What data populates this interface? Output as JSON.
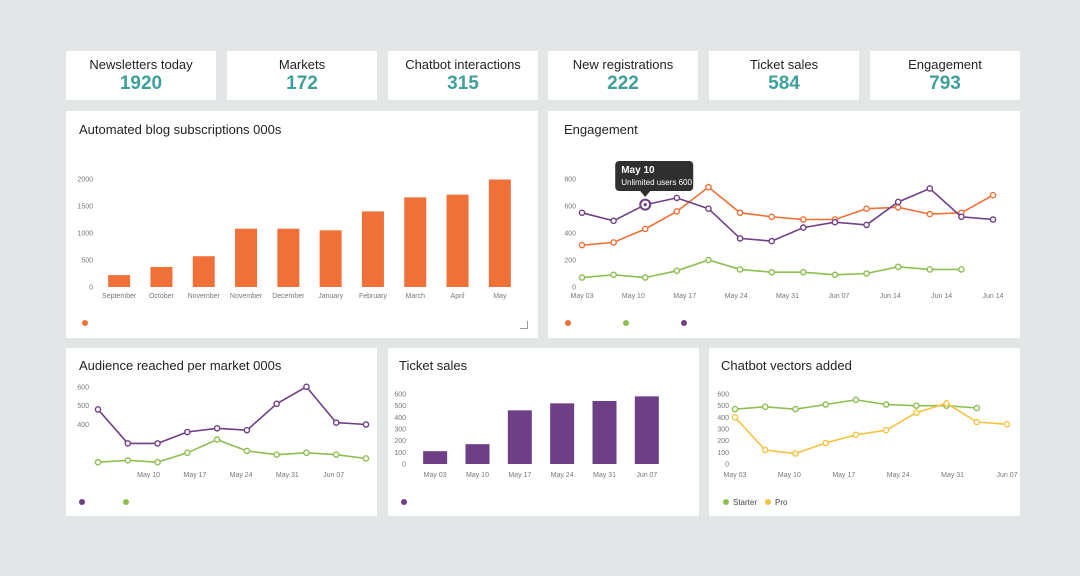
{
  "colors": {
    "orange": "#f07138",
    "purple": "#6f3f85",
    "green": "#8dbe50",
    "yellow": "#f5c342",
    "teal": "#3fa09b"
  },
  "kpis": [
    {
      "label": "Newsletters today",
      "value": "1920"
    },
    {
      "label": "Markets",
      "value": "172"
    },
    {
      "label": "Chatbot interactions",
      "value": "315"
    },
    {
      "label": "New registrations",
      "value": "222"
    },
    {
      "label": "Ticket sales",
      "value": "584"
    },
    {
      "label": "Engagement",
      "value": "793"
    }
  ],
  "chart_data": [
    {
      "id": "blog",
      "type": "bar",
      "title": "Automated blog subscriptions 000s",
      "categories": [
        "September",
        "October",
        "November",
        "November",
        "December",
        "January",
        "February",
        "March",
        "April",
        "May"
      ],
      "values": [
        220,
        370,
        570,
        1080,
        1080,
        1050,
        1400,
        1660,
        1710,
        1990
      ],
      "ylim": [
        0,
        2000
      ],
      "yticks": [
        0,
        500,
        1000,
        1500,
        2000
      ],
      "legend": [
        {
          "color": "#f07138"
        }
      ]
    },
    {
      "id": "engagement",
      "type": "line",
      "title": "Engagement",
      "xticks": [
        "May 03",
        "May 10",
        "May 17",
        "May 24",
        "May 31",
        "Jun 07",
        "Jun 14",
        "Jun 14",
        "Jun 14"
      ],
      "ylim": [
        0,
        800
      ],
      "yticks": [
        0,
        200,
        400,
        600,
        800
      ],
      "series": [
        {
          "color": "#f07138",
          "values": [
            310,
            330,
            430,
            560,
            740,
            550,
            520,
            500,
            500,
            580,
            590,
            540,
            550,
            680
          ]
        },
        {
          "color": "#8dbe50",
          "values": [
            70,
            90,
            70,
            120,
            200,
            130,
            110,
            110,
            90,
            100,
            150,
            130,
            130
          ]
        },
        {
          "color": "#6f3f85",
          "values": [
            550,
            490,
            610,
            660,
            580,
            360,
            340,
            440,
            480,
            460,
            630,
            730,
            520,
            500
          ]
        }
      ],
      "tooltip": {
        "title": "May 10",
        "text": "Unlimited users 600"
      },
      "legend": [
        {
          "color": "#f07138"
        },
        {
          "color": "#8dbe50"
        },
        {
          "color": "#6f3f85"
        }
      ]
    },
    {
      "id": "audience",
      "type": "line",
      "title": "Audience reached per market 000s",
      "xticks": [
        "May 10",
        "May 17",
        "May 24",
        "May 31",
        "Jun 07"
      ],
      "ylim": [
        180,
        620
      ],
      "yticks": [
        400,
        500,
        600
      ],
      "series": [
        {
          "color": "#6f3f85",
          "values": [
            480,
            300,
            300,
            360,
            380,
            370,
            510,
            600,
            410,
            400
          ]
        },
        {
          "color": "#8dbe50",
          "values": [
            200,
            210,
            200,
            250,
            320,
            260,
            240,
            250,
            240,
            220
          ]
        }
      ],
      "legend": [
        {
          "color": "#6f3f85"
        },
        {
          "color": "#8dbe50"
        }
      ]
    },
    {
      "id": "tickets",
      "type": "bar",
      "title": "Ticket sales",
      "categories": [
        "May 03",
        "May 10",
        "May 17",
        "May 24",
        "May 31",
        "Jun 07"
      ],
      "values": [
        110,
        170,
        460,
        520,
        540,
        580
      ],
      "ylim": [
        0,
        600
      ],
      "yticks": [
        0,
        100,
        200,
        300,
        400,
        500,
        600
      ],
      "legend": [
        {
          "color": "#6f3f85"
        }
      ]
    },
    {
      "id": "vectors",
      "type": "line",
      "title": "Chatbot vectors added",
      "xticks": [
        "May 03",
        "May 10",
        "May 17",
        "May 24",
        "May 31",
        "Jun 07"
      ],
      "ylim": [
        0,
        600
      ],
      "yticks": [
        0,
        100,
        200,
        300,
        400,
        500,
        600
      ],
      "series": [
        {
          "name": "Starter",
          "color": "#8dbe50",
          "values": [
            470,
            490,
            470,
            510,
            550,
            510,
            500,
            500,
            480
          ]
        },
        {
          "name": "Pro",
          "color": "#f5c342",
          "values": [
            400,
            120,
            90,
            180,
            250,
            290,
            440,
            520,
            360,
            340
          ]
        }
      ],
      "legend": [
        {
          "label": "Starter",
          "color": "#8dbe50"
        },
        {
          "label": "Pro",
          "color": "#f5c342"
        }
      ]
    }
  ]
}
